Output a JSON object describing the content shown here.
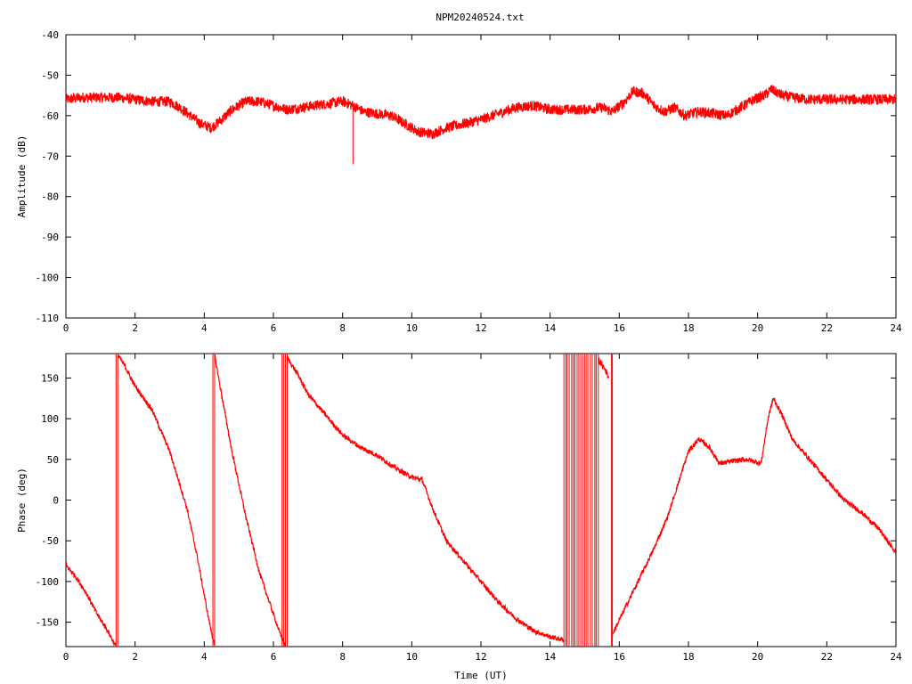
{
  "title": "NPM20240524.txt",
  "colors": {
    "series": "#ff0000",
    "axes": "#000000",
    "background": "#ffffff"
  },
  "chart_data": [
    {
      "type": "line",
      "ylabel": "Amplitude (dB)",
      "xlabel": "",
      "xlim": [
        0,
        24
      ],
      "ylim": [
        -110,
        -40
      ],
      "xticks": [
        0,
        2,
        4,
        6,
        8,
        10,
        12,
        14,
        16,
        18,
        20,
        22,
        24
      ],
      "yticks": [
        -40,
        -50,
        -60,
        -70,
        -80,
        -90,
        -100,
        -110
      ],
      "ytick_labels": [
        "-40",
        "-50",
        "-60",
        "-70",
        "-80",
        "-90",
        "-100",
        "-110"
      ],
      "grid": false,
      "series": [
        {
          "x": [
            0.0,
            0.5,
            1.0,
            1.5,
            2.0,
            2.5,
            3.0,
            3.3,
            3.6,
            3.9,
            4.2,
            4.5,
            4.8,
            5.2,
            5.6,
            6.0,
            6.4,
            6.8,
            7.2,
            7.6,
            8.0,
            8.3,
            8.6,
            9.0,
            9.4,
            9.8,
            10.2,
            10.6,
            11.0,
            11.5,
            12.0,
            12.5,
            13.0,
            13.5,
            14.0,
            14.5,
            15.0,
            15.5,
            15.8,
            16.1,
            16.4,
            16.7,
            17.0,
            17.3,
            17.6,
            17.9,
            18.3,
            18.7,
            19.1,
            19.5,
            19.9,
            20.2,
            20.4,
            20.7,
            21.0,
            21.5,
            22.0,
            22.5,
            23.0,
            23.5,
            24.0
          ],
          "values": [
            -56,
            -55.5,
            -55.5,
            -55.5,
            -56,
            -56.5,
            -56.5,
            -58,
            -60,
            -62,
            -63,
            -61,
            -58.5,
            -56.5,
            -56.5,
            -57.5,
            -58.5,
            -58,
            -57.5,
            -57,
            -56.5,
            -57.5,
            -59,
            -59.5,
            -60,
            -62,
            -64,
            -64.5,
            -63,
            -62,
            -61,
            -59.5,
            -58,
            -57.5,
            -58.5,
            -58.5,
            -58.5,
            -58,
            -59,
            -57,
            -54,
            -54.5,
            -57.5,
            -59,
            -58,
            -60,
            -59,
            -59.5,
            -60,
            -58,
            -56,
            -55,
            -53.5,
            -55,
            -55.5,
            -56,
            -56,
            -56,
            -56,
            -56,
            -56
          ]
        }
      ],
      "annotations": [
        {
          "type": "spike",
          "x": 8.3,
          "y_from": -58,
          "y_to": -72
        }
      ]
    },
    {
      "type": "line",
      "ylabel": "Phase (deg)",
      "xlabel": "Time (UT)",
      "xlim": [
        0,
        24
      ],
      "ylim": [
        -180,
        180
      ],
      "xticks": [
        0,
        2,
        4,
        6,
        8,
        10,
        12,
        14,
        16,
        18,
        20,
        22,
        24
      ],
      "yticks": [
        150,
        100,
        50,
        0,
        -50,
        -100,
        -150
      ],
      "ytick_labels": [
        "150",
        "100",
        "50",
        "0",
        "-50",
        "-100",
        "-150"
      ],
      "grid": false,
      "series": [
        {
          "segments": [
            {
              "x": [
                0.0,
                0.3,
                0.6,
                0.9,
                1.2,
                1.45
              ],
              "values": [
                -80,
                -95,
                -115,
                -140,
                -160,
                -180
              ]
            },
            {
              "x": [
                1.5,
                1.7,
                2.0,
                2.5,
                3.0,
                3.5,
                3.8,
                4.1,
                4.3
              ],
              "values": [
                178,
                165,
                140,
                110,
                60,
                -10,
                -70,
                -140,
                -180
              ]
            },
            {
              "x": [
                4.3,
                4.5,
                4.8,
                5.2,
                5.6,
                6.0,
                6.2,
                6.35
              ],
              "values": [
                178,
                130,
                60,
                -20,
                -90,
                -140,
                -165,
                -180
              ]
            },
            {
              "x": [
                6.4,
                6.7,
                7.0,
                7.5,
                8.0,
                8.5,
                9.0,
                9.5,
                10.0,
                10.3,
                10.6,
                11.0,
                11.5,
                12.0,
                12.5,
                13.0,
                13.5,
                14.0,
                14.4
              ],
              "values": [
                175,
                155,
                130,
                105,
                80,
                65,
                55,
                40,
                28,
                25,
                -10,
                -50,
                -75,
                -100,
                -125,
                -145,
                -160,
                -168,
                -172
              ]
            },
            {
              "x": [
                15.8,
                16.2,
                16.6,
                17.0,
                17.4,
                17.7,
                18.0,
                18.3,
                18.6,
                18.9,
                19.3,
                19.7,
                20.1,
                20.3,
                20.45,
                20.7,
                21.0,
                21.5,
                22.0,
                22.5,
                23.0,
                23.5,
                24.0
              ],
              "values": [
                -165,
                -130,
                -95,
                -60,
                -20,
                20,
                60,
                75,
                65,
                45,
                48,
                50,
                45,
                100,
                125,
                105,
                75,
                50,
                25,
                0,
                -15,
                -35,
                -65
              ]
            }
          ]
        }
      ],
      "annotations": [
        {
          "type": "wrap-jump",
          "x": [
            1.45,
            1.5,
            4.25,
            4.3,
            6.25,
            6.3,
            6.35,
            6.4
          ]
        },
        {
          "type": "noisy-band",
          "x_from": 14.4,
          "x_to": 15.4
        },
        {
          "type": "noisy-segment",
          "x": [
            15.4,
            15.6,
            15.7
          ],
          "values": [
            172,
            160,
            150
          ]
        },
        {
          "type": "wrap-jump",
          "x": [
            15.77,
            15.8
          ]
        }
      ]
    }
  ]
}
